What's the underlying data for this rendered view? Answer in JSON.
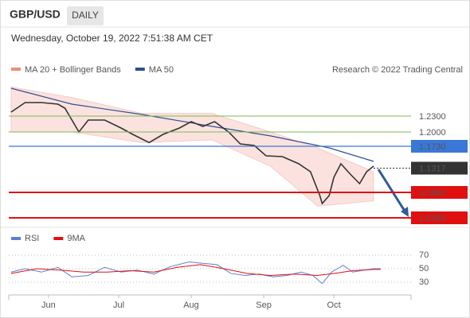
{
  "header": {
    "symbol": "GBP/USD",
    "period": "DAILY",
    "timestamp": "Wednesday, October 19, 2022 7:51:38 AM CET"
  },
  "chart_data": [
    {
      "type": "line",
      "source": "Research © 2022 Trading Central",
      "xlim": [
        -17,
        155
      ],
      "ylim": [
        1.02,
        1.2975
      ],
      "yticks": [
        {
          "value": 1.23,
          "label": "1.2300",
          "color": "#7dbb52",
          "line": "solid",
          "box": false
        },
        {
          "value": 1.2,
          "label": "1.2000",
          "color": "#7dbb52",
          "line": "solid",
          "box": false
        },
        {
          "value": 1.173,
          "label": "1.1730",
          "color": "#3a78d8",
          "line": "solid",
          "box": true
        },
        {
          "value": 1.1317,
          "label": "1.1317",
          "color": "#333333",
          "line": "dotted",
          "box": true
        },
        {
          "value": 1.086,
          "label": "1.0860",
          "color": "#e01010",
          "line": "solid",
          "box": true
        },
        {
          "value": 1.038,
          "label": "1.0380",
          "color": "#e01010",
          "line": "solid",
          "box": true
        }
      ],
      "series": [
        {
          "name": "MA 20 + Bollinger Bands",
          "color": "#f08a80",
          "kind": "band",
          "x": [
            -16,
            10,
            40,
            70,
            95,
            115,
            139
          ],
          "upper": [
            1.285,
            1.265,
            1.235,
            1.235,
            1.2,
            1.17,
            1.125
          ],
          "lower": [
            1.2,
            1.2,
            1.18,
            1.185,
            1.135,
            1.06,
            1.07
          ]
        },
        {
          "name": "MA 50",
          "color": "#2e5090",
          "kind": "line",
          "x": [
            -16,
            10,
            40,
            70,
            95,
            120,
            139
          ],
          "values": [
            1.2825,
            1.2525,
            1.233,
            1.2105,
            1.1925,
            1.17,
            1.1445
          ]
        },
        {
          "color": "#333333",
          "kind": "price",
          "x": [
            -16,
            -10,
            -3,
            4,
            7,
            13,
            17,
            24,
            31,
            36,
            43,
            49,
            56,
            61,
            66,
            71,
            77,
            82,
            88,
            93,
            100,
            107,
            112,
            116,
            117,
            120,
            122,
            125,
            129,
            133,
            136,
            139
          ],
          "values": [
            1.2375,
            1.2555,
            1.2555,
            1.2525,
            1.245,
            1.2,
            1.2225,
            1.2225,
            1.2075,
            1.1955,
            1.18,
            1.1955,
            1.2075,
            1.2195,
            1.2105,
            1.2195,
            1.2,
            1.1775,
            1.1745,
            1.155,
            1.1535,
            1.14,
            1.125,
            1.08,
            1.065,
            1.08,
            1.1145,
            1.14,
            1.1205,
            1.1025,
            1.125,
            1.1355
          ]
        }
      ]
    },
    {
      "type": "line",
      "xlim": [
        -17,
        155
      ],
      "ylim": [
        15,
        85
      ],
      "yticks": [
        70,
        50,
        30
      ],
      "xticks": [
        {
          "value": 0,
          "label": "Jun"
        },
        {
          "value": 30,
          "label": "Jul"
        },
        {
          "value": 61,
          "label": "Aug"
        },
        {
          "value": 92,
          "label": "Sep"
        },
        {
          "value": 122,
          "label": "Oct"
        }
      ],
      "series": [
        {
          "name": "RSI",
          "color": "#5b7fd6",
          "x": [
            -16,
            -10,
            -3,
            4,
            10,
            17,
            24,
            31,
            38,
            45,
            52,
            60,
            66,
            72,
            78,
            84,
            90,
            96,
            102,
            108,
            113,
            117,
            121,
            126,
            130,
            135,
            139,
            142
          ],
          "values": [
            45,
            50,
            45,
            52,
            38,
            40,
            52,
            45,
            48,
            42,
            53,
            60,
            58,
            56,
            43,
            40,
            42,
            38,
            40,
            45,
            40,
            28,
            45,
            55,
            45,
            48,
            50,
            50
          ]
        },
        {
          "name": "9MA",
          "color": "#e01010",
          "x": [
            -16,
            -5,
            5,
            15,
            25,
            35,
            45,
            55,
            65,
            75,
            85,
            95,
            105,
            115,
            122,
            130,
            139,
            142
          ],
          "values": [
            43,
            50,
            48,
            45,
            45,
            47,
            45,
            52,
            56,
            50,
            43,
            40,
            42,
            40,
            43,
            47,
            49,
            49
          ]
        }
      ]
    }
  ]
}
